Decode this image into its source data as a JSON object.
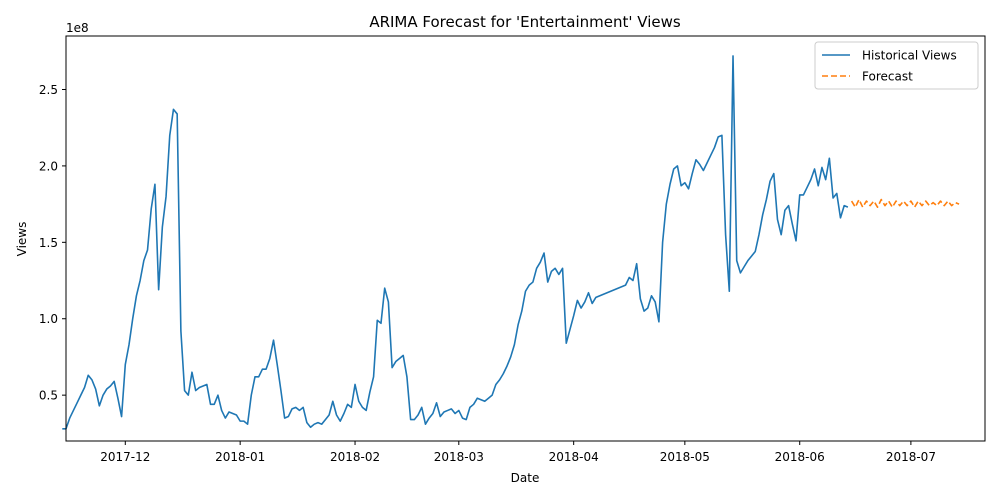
{
  "chart_data": {
    "type": "line",
    "title": "ARIMA Forecast for 'Entertainment' Views",
    "xlabel": "Date",
    "ylabel": "Views",
    "y_scale_label": "1e8",
    "x_range": [
      "2017-11-15",
      "2018-07-21"
    ],
    "ylim": [
      0.2,
      2.85
    ],
    "x_ticks": [
      {
        "date": "2017-12-01",
        "label": "2017-12"
      },
      {
        "date": "2018-01-01",
        "label": "2018-01"
      },
      {
        "date": "2018-02-01",
        "label": "2018-02"
      },
      {
        "date": "2018-03-01",
        "label": "2018-03"
      },
      {
        "date": "2018-04-01",
        "label": "2018-04"
      },
      {
        "date": "2018-05-01",
        "label": "2018-05"
      },
      {
        "date": "2018-06-01",
        "label": "2018-06"
      },
      {
        "date": "2018-07-01",
        "label": "2018-07"
      }
    ],
    "y_ticks": [
      {
        "value": 0.5,
        "label": "0.5"
      },
      {
        "value": 1.0,
        "label": "1.0"
      },
      {
        "value": 1.5,
        "label": "1.5"
      },
      {
        "value": 2.0,
        "label": "2.0"
      },
      {
        "value": 2.5,
        "label": "2.5"
      }
    ],
    "legend_position": "top-right",
    "grid": false,
    "series": [
      {
        "name": "Historical Views",
        "color": "#1f77b4",
        "style": "solid",
        "points": [
          [
            "2017-11-14",
            0.28
          ],
          [
            "2017-11-15",
            0.28
          ],
          [
            "2017-11-16",
            0.35
          ],
          [
            "2017-11-17",
            0.4
          ],
          [
            "2017-11-18",
            0.45
          ],
          [
            "2017-11-19",
            0.5
          ],
          [
            "2017-11-20",
            0.55
          ],
          [
            "2017-11-21",
            0.63
          ],
          [
            "2017-11-22",
            0.6
          ],
          [
            "2017-11-23",
            0.54
          ],
          [
            "2017-11-24",
            0.43
          ],
          [
            "2017-11-25",
            0.5
          ],
          [
            "2017-11-26",
            0.54
          ],
          [
            "2017-11-27",
            0.56
          ],
          [
            "2017-11-28",
            0.59
          ],
          [
            "2017-11-29",
            0.48
          ],
          [
            "2017-11-30",
            0.36
          ],
          [
            "2017-12-01",
            0.7
          ],
          [
            "2017-12-02",
            0.83
          ],
          [
            "2017-12-03",
            1.0
          ],
          [
            "2017-12-04",
            1.15
          ],
          [
            "2017-12-05",
            1.25
          ],
          [
            "2017-12-06",
            1.38
          ],
          [
            "2017-12-07",
            1.45
          ],
          [
            "2017-12-08",
            1.72
          ],
          [
            "2017-12-09",
            1.88
          ],
          [
            "2017-12-10",
            1.19
          ],
          [
            "2017-12-11",
            1.6
          ],
          [
            "2017-12-12",
            1.8
          ],
          [
            "2017-12-13",
            2.2
          ],
          [
            "2017-12-14",
            2.37
          ],
          [
            "2017-12-15",
            2.34
          ],
          [
            "2017-12-16",
            0.92
          ],
          [
            "2017-12-17",
            0.53
          ],
          [
            "2017-12-18",
            0.5
          ],
          [
            "2017-12-19",
            0.65
          ],
          [
            "2017-12-20",
            0.53
          ],
          [
            "2017-12-21",
            0.55
          ],
          [
            "2017-12-22",
            0.56
          ],
          [
            "2017-12-23",
            0.57
          ],
          [
            "2017-12-24",
            0.44
          ],
          [
            "2017-12-25",
            0.44
          ],
          [
            "2017-12-26",
            0.5
          ],
          [
            "2017-12-27",
            0.4
          ],
          [
            "2017-12-28",
            0.35
          ],
          [
            "2017-12-29",
            0.39
          ],
          [
            "2017-12-30",
            0.38
          ],
          [
            "2017-12-31",
            0.37
          ],
          [
            "2018-01-01",
            0.33
          ],
          [
            "2018-01-02",
            0.33
          ],
          [
            "2018-01-03",
            0.31
          ],
          [
            "2018-01-04",
            0.5
          ],
          [
            "2018-01-05",
            0.62
          ],
          [
            "2018-01-06",
            0.62
          ],
          [
            "2018-01-07",
            0.67
          ],
          [
            "2018-01-08",
            0.67
          ],
          [
            "2018-01-09",
            0.74
          ],
          [
            "2018-01-10",
            0.86
          ],
          [
            "2018-01-11",
            0.7
          ],
          [
            "2018-01-12",
            0.53
          ],
          [
            "2018-01-13",
            0.35
          ],
          [
            "2018-01-14",
            0.36
          ],
          [
            "2018-01-15",
            0.41
          ],
          [
            "2018-01-16",
            0.42
          ],
          [
            "2018-01-17",
            0.4
          ],
          [
            "2018-01-18",
            0.42
          ],
          [
            "2018-01-19",
            0.32
          ],
          [
            "2018-01-20",
            0.29
          ],
          [
            "2018-01-21",
            0.31
          ],
          [
            "2018-01-22",
            0.32
          ],
          [
            "2018-01-23",
            0.31
          ],
          [
            "2018-01-24",
            0.34
          ],
          [
            "2018-01-25",
            0.37
          ],
          [
            "2018-01-26",
            0.46
          ],
          [
            "2018-01-27",
            0.37
          ],
          [
            "2018-01-28",
            0.33
          ],
          [
            "2018-01-29",
            0.38
          ],
          [
            "2018-01-30",
            0.44
          ],
          [
            "2018-01-31",
            0.42
          ],
          [
            "2018-02-01",
            0.57
          ],
          [
            "2018-02-02",
            0.46
          ],
          [
            "2018-02-03",
            0.42
          ],
          [
            "2018-02-04",
            0.4
          ],
          [
            "2018-02-05",
            0.52
          ],
          [
            "2018-02-06",
            0.62
          ],
          [
            "2018-02-07",
            0.99
          ],
          [
            "2018-02-08",
            0.97
          ],
          [
            "2018-02-09",
            1.2
          ],
          [
            "2018-02-10",
            1.11
          ],
          [
            "2018-02-11",
            0.68
          ],
          [
            "2018-02-12",
            0.72
          ],
          [
            "2018-02-13",
            0.74
          ],
          [
            "2018-02-14",
            0.76
          ],
          [
            "2018-02-15",
            0.62
          ],
          [
            "2018-02-16",
            0.34
          ],
          [
            "2018-02-17",
            0.34
          ],
          [
            "2018-02-18",
            0.37
          ],
          [
            "2018-02-19",
            0.42
          ],
          [
            "2018-02-20",
            0.31
          ],
          [
            "2018-02-21",
            0.35
          ],
          [
            "2018-02-22",
            0.38
          ],
          [
            "2018-02-23",
            0.45
          ],
          [
            "2018-02-24",
            0.36
          ],
          [
            "2018-02-25",
            0.39
          ],
          [
            "2018-02-26",
            0.4
          ],
          [
            "2018-02-27",
            0.41
          ],
          [
            "2018-02-28",
            0.38
          ],
          [
            "2018-03-01",
            0.4
          ],
          [
            "2018-03-02",
            0.35
          ],
          [
            "2018-03-03",
            0.34
          ],
          [
            "2018-03-04",
            0.42
          ],
          [
            "2018-03-05",
            0.44
          ],
          [
            "2018-03-06",
            0.48
          ],
          [
            "2018-03-07",
            0.47
          ],
          [
            "2018-03-08",
            0.46
          ],
          [
            "2018-03-09",
            0.48
          ],
          [
            "2018-03-10",
            0.5
          ],
          [
            "2018-03-11",
            0.57
          ],
          [
            "2018-03-12",
            0.6
          ],
          [
            "2018-03-13",
            0.64
          ],
          [
            "2018-03-14",
            0.69
          ],
          [
            "2018-03-15",
            0.75
          ],
          [
            "2018-03-16",
            0.83
          ],
          [
            "2018-03-17",
            0.96
          ],
          [
            "2018-03-18",
            1.05
          ],
          [
            "2018-03-19",
            1.18
          ],
          [
            "2018-03-20",
            1.22
          ],
          [
            "2018-03-21",
            1.24
          ],
          [
            "2018-03-22",
            1.33
          ],
          [
            "2018-03-23",
            1.37
          ],
          [
            "2018-03-24",
            1.43
          ],
          [
            "2018-03-25",
            1.24
          ],
          [
            "2018-03-26",
            1.31
          ],
          [
            "2018-03-27",
            1.33
          ],
          [
            "2018-03-28",
            1.29
          ],
          [
            "2018-03-29",
            1.33
          ],
          [
            "2018-03-30",
            0.84
          ],
          [
            "2018-03-31",
            0.93
          ],
          [
            "2018-04-01",
            1.02
          ],
          [
            "2018-04-02",
            1.12
          ],
          [
            "2018-04-03",
            1.07
          ],
          [
            "2018-04-04",
            1.11
          ],
          [
            "2018-04-05",
            1.17
          ],
          [
            "2018-04-06",
            1.1
          ],
          [
            "2018-04-07",
            1.14
          ],
          [
            "2018-04-15",
            1.22
          ],
          [
            "2018-04-16",
            1.27
          ],
          [
            "2018-04-17",
            1.25
          ],
          [
            "2018-04-18",
            1.36
          ],
          [
            "2018-04-19",
            1.13
          ],
          [
            "2018-04-20",
            1.05
          ],
          [
            "2018-04-21",
            1.07
          ],
          [
            "2018-04-22",
            1.15
          ],
          [
            "2018-04-23",
            1.11
          ],
          [
            "2018-04-24",
            0.98
          ],
          [
            "2018-04-25",
            1.5
          ],
          [
            "2018-04-26",
            1.75
          ],
          [
            "2018-04-27",
            1.88
          ],
          [
            "2018-04-28",
            1.98
          ],
          [
            "2018-04-29",
            2.0
          ],
          [
            "2018-04-30",
            1.87
          ],
          [
            "2018-05-01",
            1.89
          ],
          [
            "2018-05-02",
            1.85
          ],
          [
            "2018-05-03",
            1.95
          ],
          [
            "2018-05-04",
            2.04
          ],
          [
            "2018-05-05",
            2.01
          ],
          [
            "2018-05-06",
            1.97
          ],
          [
            "2018-05-07",
            2.02
          ],
          [
            "2018-05-08",
            2.07
          ],
          [
            "2018-05-09",
            2.12
          ],
          [
            "2018-05-10",
            2.19
          ],
          [
            "2018-05-11",
            2.2
          ],
          [
            "2018-05-12",
            1.55
          ],
          [
            "2018-05-13",
            1.18
          ],
          [
            "2018-05-14",
            2.72
          ],
          [
            "2018-05-15",
            1.38
          ],
          [
            "2018-05-16",
            1.3
          ],
          [
            "2018-05-17",
            1.34
          ],
          [
            "2018-05-18",
            1.38
          ],
          [
            "2018-05-19",
            1.41
          ],
          [
            "2018-05-20",
            1.44
          ],
          [
            "2018-05-21",
            1.55
          ],
          [
            "2018-05-22",
            1.68
          ],
          [
            "2018-05-23",
            1.78
          ],
          [
            "2018-05-24",
            1.9
          ],
          [
            "2018-05-25",
            1.95
          ],
          [
            "2018-05-26",
            1.65
          ],
          [
            "2018-05-27",
            1.55
          ],
          [
            "2018-05-28",
            1.71
          ],
          [
            "2018-05-29",
            1.74
          ],
          [
            "2018-05-30",
            1.62
          ],
          [
            "2018-05-31",
            1.51
          ],
          [
            "2018-06-01",
            1.81
          ],
          [
            "2018-06-02",
            1.81
          ],
          [
            "2018-06-03",
            1.86
          ],
          [
            "2018-06-04",
            1.91
          ],
          [
            "2018-06-05",
            1.98
          ],
          [
            "2018-06-06",
            1.87
          ],
          [
            "2018-06-07",
            1.99
          ],
          [
            "2018-06-08",
            1.91
          ],
          [
            "2018-06-09",
            2.05
          ],
          [
            "2018-06-10",
            1.79
          ],
          [
            "2018-06-11",
            1.82
          ],
          [
            "2018-06-12",
            1.66
          ],
          [
            "2018-06-13",
            1.74
          ],
          [
            "2018-06-14",
            1.73
          ]
        ]
      },
      {
        "name": "Forecast",
        "color": "#ff7f0e",
        "style": "dashed",
        "points": [
          [
            "2018-06-15",
            1.77
          ],
          [
            "2018-06-16",
            1.73
          ],
          [
            "2018-06-17",
            1.78
          ],
          [
            "2018-06-18",
            1.73
          ],
          [
            "2018-06-19",
            1.77
          ],
          [
            "2018-06-20",
            1.74
          ],
          [
            "2018-06-21",
            1.77
          ],
          [
            "2018-06-22",
            1.73
          ],
          [
            "2018-06-23",
            1.78
          ],
          [
            "2018-06-24",
            1.74
          ],
          [
            "2018-06-25",
            1.77
          ],
          [
            "2018-06-26",
            1.73
          ],
          [
            "2018-06-27",
            1.77
          ],
          [
            "2018-06-28",
            1.74
          ],
          [
            "2018-06-29",
            1.77
          ],
          [
            "2018-06-30",
            1.74
          ],
          [
            "2018-07-01",
            1.77
          ],
          [
            "2018-07-02",
            1.73
          ],
          [
            "2018-07-03",
            1.77
          ],
          [
            "2018-07-04",
            1.74
          ],
          [
            "2018-07-05",
            1.77
          ],
          [
            "2018-07-06",
            1.74
          ],
          [
            "2018-07-07",
            1.76
          ],
          [
            "2018-07-08",
            1.74
          ],
          [
            "2018-07-09",
            1.77
          ],
          [
            "2018-07-10",
            1.74
          ],
          [
            "2018-07-11",
            1.77
          ],
          [
            "2018-07-12",
            1.74
          ],
          [
            "2018-07-13",
            1.76
          ],
          [
            "2018-07-14",
            1.75
          ]
        ]
      }
    ]
  }
}
